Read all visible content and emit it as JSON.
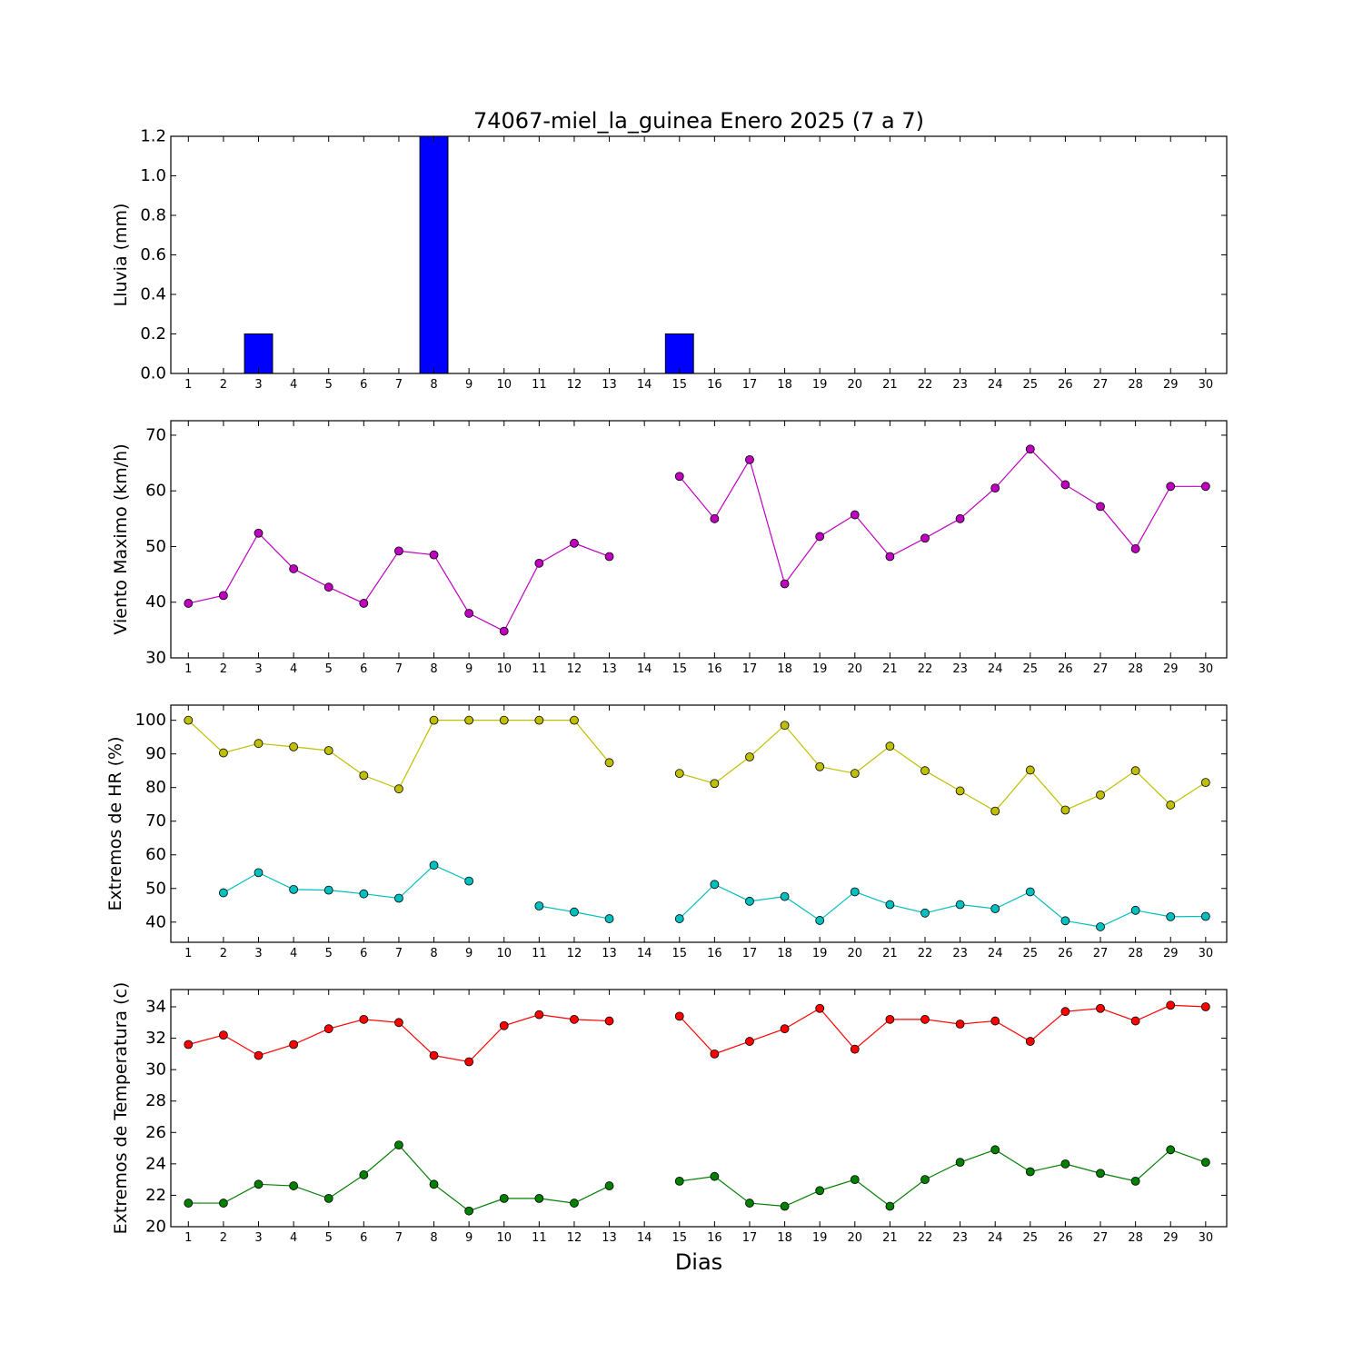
{
  "chart_data": [
    {
      "type": "bar",
      "title": "74067-miel_la_guinea Enero 2025  (7 a 7)",
      "ylabel": "Lluvia (mm)",
      "xlabel": "",
      "ylim": [
        0.0,
        1.2
      ],
      "yticks": [
        "0.0",
        "0.2",
        "0.4",
        "0.6",
        "0.8",
        "1.0",
        "1.2"
      ],
      "x": [
        1,
        2,
        3,
        4,
        5,
        6,
        7,
        8,
        9,
        10,
        11,
        12,
        13,
        14,
        15,
        16,
        17,
        18,
        19,
        20,
        21,
        22,
        23,
        24,
        25,
        26,
        27,
        28,
        29,
        30
      ],
      "series": [
        {
          "color": "#0000ff",
          "values": [
            0,
            0,
            0.2,
            0,
            0,
            0,
            0,
            1.2,
            0,
            0,
            0,
            0,
            0,
            0,
            0.2,
            0,
            0,
            0,
            0,
            0,
            0,
            0,
            0,
            0,
            0,
            0,
            0,
            0,
            0,
            0
          ]
        }
      ],
      "grid": false
    },
    {
      "type": "line",
      "ylabel": "Viento Maximo (km/h)",
      "xlabel": "",
      "ylim": [
        30,
        72.6
      ],
      "yticks": [
        "30",
        "40",
        "50",
        "60",
        "70"
      ],
      "x": [
        1,
        2,
        3,
        4,
        5,
        6,
        7,
        8,
        9,
        10,
        11,
        12,
        13,
        14,
        15,
        16,
        17,
        18,
        19,
        20,
        21,
        22,
        23,
        24,
        25,
        26,
        27,
        28,
        29,
        30
      ],
      "series": [
        {
          "color": "#bf00bf",
          "values": [
            39.8,
            41.2,
            52.4,
            46.0,
            42.7,
            39.8,
            49.2,
            48.5,
            38.0,
            34.8,
            47.0,
            50.6,
            48.2,
            null,
            62.6,
            55.0,
            65.6,
            43.3,
            51.8,
            55.7,
            48.2,
            51.5,
            55.0,
            60.5,
            67.5,
            61.1,
            57.2,
            49.6,
            60.8,
            60.8
          ]
        }
      ],
      "grid": false
    },
    {
      "type": "line",
      "ylabel": "Extremos de HR (%)",
      "xlabel": "",
      "ylim": [
        34,
        104.5
      ],
      "yticks": [
        "40",
        "50",
        "60",
        "70",
        "80",
        "90",
        "100"
      ],
      "x": [
        1,
        2,
        3,
        4,
        5,
        6,
        7,
        8,
        9,
        10,
        11,
        12,
        13,
        14,
        15,
        16,
        17,
        18,
        19,
        20,
        21,
        22,
        23,
        24,
        25,
        26,
        27,
        28,
        29,
        30
      ],
      "series": [
        {
          "color": "#bfbf00",
          "values": [
            100,
            90.3,
            93.1,
            92.1,
            91.0,
            83.6,
            79.6,
            100,
            100,
            100,
            100,
            100,
            87.4,
            null,
            84.2,
            81.2,
            89.1,
            98.5,
            86.2,
            84.2,
            92.3,
            85.0,
            79.0,
            73.0,
            85.2,
            73.3,
            77.8,
            85.0,
            74.8,
            81.5
          ]
        },
        {
          "color": "#00bfbf",
          "values": [
            null,
            48.7,
            54.7,
            49.7,
            49.5,
            48.4,
            47.1,
            56.9,
            52.2,
            null,
            44.8,
            43.0,
            41.0,
            null,
            41.0,
            51.2,
            46.2,
            47.6,
            40.5,
            49.0,
            45.2,
            42.7,
            45.2,
            44.0,
            49.0,
            40.4,
            38.6,
            43.5,
            41.6,
            41.7
          ]
        }
      ],
      "grid": false
    },
    {
      "type": "line",
      "ylabel": "Extremos de Temperatura (c)",
      "xlabel": "Dias",
      "ylim": [
        20,
        35.1
      ],
      "yticks": [
        "20",
        "22",
        "24",
        "26",
        "28",
        "30",
        "32",
        "34"
      ],
      "x": [
        1,
        2,
        3,
        4,
        5,
        6,
        7,
        8,
        9,
        10,
        11,
        12,
        13,
        14,
        15,
        16,
        17,
        18,
        19,
        20,
        21,
        22,
        23,
        24,
        25,
        26,
        27,
        28,
        29,
        30
      ],
      "series": [
        {
          "color": "#ff0000",
          "values": [
            31.6,
            32.2,
            30.9,
            31.6,
            32.6,
            33.2,
            33.0,
            30.9,
            30.5,
            32.8,
            33.5,
            33.2,
            33.1,
            null,
            33.4,
            31.0,
            31.8,
            32.6,
            33.9,
            31.3,
            33.2,
            33.2,
            32.9,
            33.1,
            31.8,
            33.7,
            33.9,
            33.1,
            34.1,
            34.0
          ]
        },
        {
          "color": "#007f00",
          "values": [
            21.5,
            21.5,
            22.7,
            22.6,
            21.8,
            23.3,
            25.2,
            22.7,
            21.0,
            21.8,
            21.8,
            21.5,
            22.6,
            null,
            22.9,
            23.2,
            21.5,
            21.3,
            22.3,
            23.0,
            21.3,
            23.0,
            24.1,
            24.9,
            23.5,
            24.0,
            23.4,
            22.9,
            24.9,
            24.1
          ]
        }
      ],
      "grid": false
    }
  ]
}
